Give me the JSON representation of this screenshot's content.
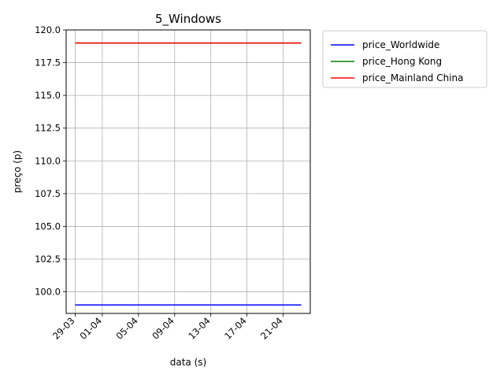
{
  "chart_data": {
    "type": "line",
    "title": "5_Windows",
    "xlabel": "data (s)",
    "ylabel": "preço (p)",
    "x": [
      "2020-03-29",
      "2020-04-23"
    ],
    "x_ticks": [
      "2020-03-29",
      "2020-04-01",
      "2020-04-05",
      "2020-04-09",
      "2020-04-13",
      "2020-04-17",
      "2020-04-21"
    ],
    "x_tick_labels": [
      "29-03",
      "01-04",
      "05-04",
      "09-04",
      "13-04",
      "17-04",
      "21-04"
    ],
    "xlim": [
      "2020-03-28",
      "2020-04-24"
    ],
    "ylim": [
      98.35,
      120.0
    ],
    "y_ticks": [
      100.0,
      102.5,
      105.0,
      107.5,
      110.0,
      112.5,
      115.0,
      117.5,
      120.0
    ],
    "y_tick_labels": [
      "100.0",
      "102.5",
      "105.0",
      "107.5",
      "110.0",
      "112.5",
      "115.0",
      "117.5",
      "120.0"
    ],
    "grid": true,
    "legend_position": "outside-right",
    "series": [
      {
        "name": "price_Worldwide",
        "color": "#0000ff",
        "values": [
          99,
          99
        ]
      },
      {
        "name": "price_Hong Kong",
        "color": "#008000",
        "values": [
          119,
          119
        ]
      },
      {
        "name": "price_Mainland China",
        "color": "#ff0000",
        "values": [
          119,
          119
        ]
      }
    ]
  }
}
